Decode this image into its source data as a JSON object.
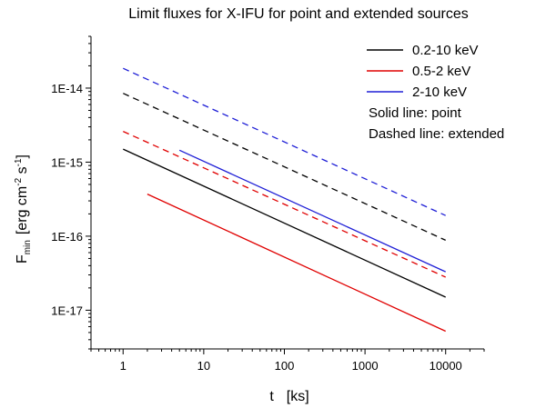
{
  "chart_data": {
    "type": "line",
    "title": "Limit fluxes for X-IFU for point and extended sources",
    "xlabel": {
      "main": "t",
      "unit": "[ks]"
    },
    "ylabel": {
      "main": "F",
      "sub": "min",
      "unit_open": "[erg cm",
      "unit_exp1": "-2",
      "unit_mid": " s",
      "unit_exp2": "-1",
      "unit_close": "]"
    },
    "x_scale": "log",
    "y_scale": "log",
    "xlim": [
      0.4,
      30000
    ],
    "ylim": [
      3e-18,
      5e-14
    ],
    "x_ticks": [
      {
        "value": 1,
        "label": "1"
      },
      {
        "value": 10,
        "label": "10"
      },
      {
        "value": 100,
        "label": "100"
      },
      {
        "value": 1000,
        "label": "1000"
      },
      {
        "value": 10000,
        "label": "10000"
      }
    ],
    "y_ticks": [
      {
        "value": 1e-14,
        "label": "1E-14"
      },
      {
        "value": 1e-15,
        "label": "1E-15"
      },
      {
        "value": 1e-16,
        "label": "1E-16"
      },
      {
        "value": 1e-17,
        "label": "1E-17"
      }
    ],
    "grid": false,
    "legend_position": "top-right",
    "legend": [
      {
        "label": "0.2-10 keV",
        "color": "#000000"
      },
      {
        "label": "0.5-2 keV",
        "color": "#e00000"
      },
      {
        "label": "2-10 keV",
        "color": "#1f1fd6"
      }
    ],
    "legend_notes": [
      "Solid line: point",
      "Dashed line: extended"
    ],
    "series": [
      {
        "band": "0.2-10 keV",
        "source": "point",
        "style": "solid",
        "color": "#000000",
        "x": [
          1,
          10000
        ],
        "y": [
          1.5e-15,
          1.5e-17
        ]
      },
      {
        "band": "0.5-2 keV",
        "source": "point",
        "style": "solid",
        "color": "#e00000",
        "x": [
          2,
          10000
        ],
        "y": [
          3.7e-16,
          5.2e-18
        ]
      },
      {
        "band": "2-10 keV",
        "source": "point",
        "style": "solid",
        "color": "#1f1fd6",
        "x": [
          5,
          10000
        ],
        "y": [
          1.45e-15,
          3.3e-17
        ]
      },
      {
        "band": "0.2-10 keV",
        "source": "extended",
        "style": "dashed",
        "color": "#000000",
        "x": [
          1,
          10000
        ],
        "y": [
          8.5e-15,
          8.8e-17
        ]
      },
      {
        "band": "0.5-2 keV",
        "source": "extended",
        "style": "dashed",
        "color": "#e00000",
        "x": [
          1,
          10000
        ],
        "y": [
          2.6e-15,
          2.8e-17
        ]
      },
      {
        "band": "2-10 keV",
        "source": "extended",
        "style": "dashed",
        "color": "#1f1fd6",
        "x": [
          1,
          10000
        ],
        "y": [
          1.85e-14,
          1.9e-16
        ]
      }
    ]
  }
}
